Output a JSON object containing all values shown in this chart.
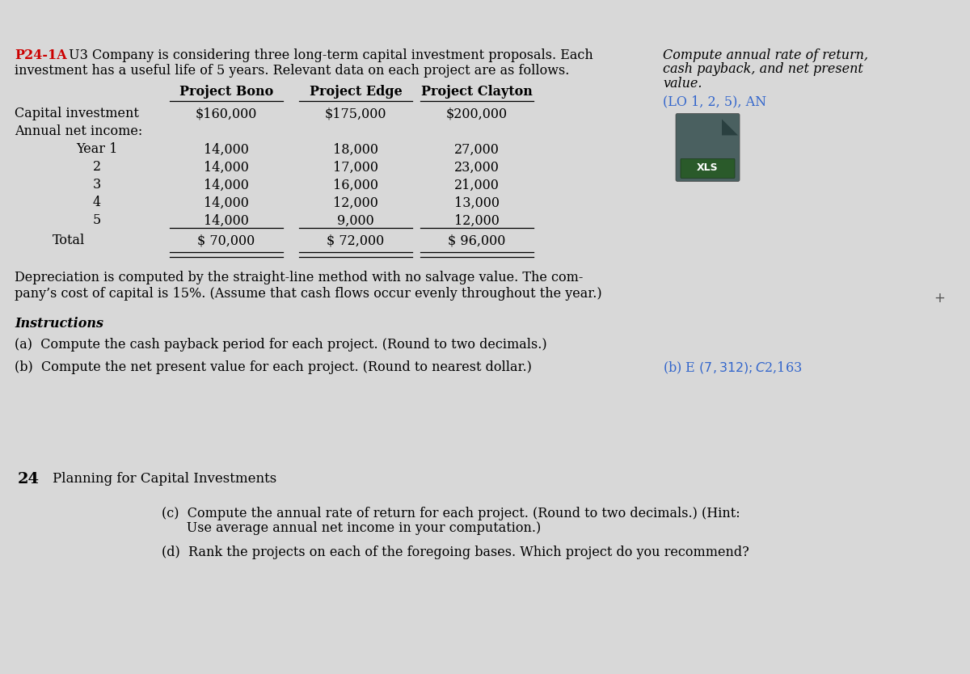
{
  "bg_color_top": "#d8d8d8",
  "bg_color_bottom": "#f0f0ec",
  "browser_bar_color": "#b0b0b0",
  "separator_color": "#b8b8b8",
  "header_label": "P24-1A",
  "header_color": "#cc0000",
  "intro_line1": " U3 Company is considering three long-term capital investment proposals. Each",
  "intro_line2": "investment has a useful life of 5 years. Relevant data on each project are as follows.",
  "sidebar_line1": "Compute annual rate of return,",
  "sidebar_line2": "cash payback, and net present",
  "sidebar_line3": "value.",
  "sidebar_lo": "(LO 1, 2, 5), AN",
  "sidebar_lo_color": "#3366cc",
  "col_headers": [
    "Project Bono",
    "Project Edge",
    "Project Clayton"
  ],
  "capital_label": "Capital investment",
  "annual_label": "Annual net income:",
  "capital_investment": [
    "$160,000",
    "$175,000",
    "$200,000"
  ],
  "years": [
    "Year 1",
    "2",
    "3",
    "4",
    "5"
  ],
  "bono_income": [
    "14,000",
    "14,000",
    "14,000",
    "14,000",
    "14,000"
  ],
  "edge_income": [
    "18,000",
    "17,000",
    "16,000",
    "12,000",
    "9,000"
  ],
  "clayton_income": [
    "27,000",
    "23,000",
    "21,000",
    "13,000",
    "12,000"
  ],
  "total_label": "Total",
  "totals": [
    "$ 70,000",
    "$ 72,000",
    "$ 96,000"
  ],
  "depreciation_line1": "Depreciation is computed by the straight-line method with no salvage value. The com-",
  "depreciation_line2": "pany’s cost of capital is 15%. (Assume that cash flows occur evenly throughout the year.)",
  "plus_sign": "+",
  "instructions_title": "Instructions",
  "instruction_a": "(a)  Compute the cash payback period for each project. (Round to two decimals.)",
  "instruction_b": "(b)  Compute the net present value for each project. (Round to nearest dollar.)",
  "answer_b": "(b) E $(7,312); C $2,163",
  "answer_b_color": "#3366cc",
  "section_number": "24",
  "section_title": "Planning for Capital Investments",
  "instruction_c1": "(c)  Compute the annual rate of return for each project. (Round to two decimals.) (Hint:",
  "instruction_c2": "      Use average annual net income in your computation.)",
  "instruction_d": "(d)  Rank the projects on each of the foregoing bases. Which project do you recommend?"
}
